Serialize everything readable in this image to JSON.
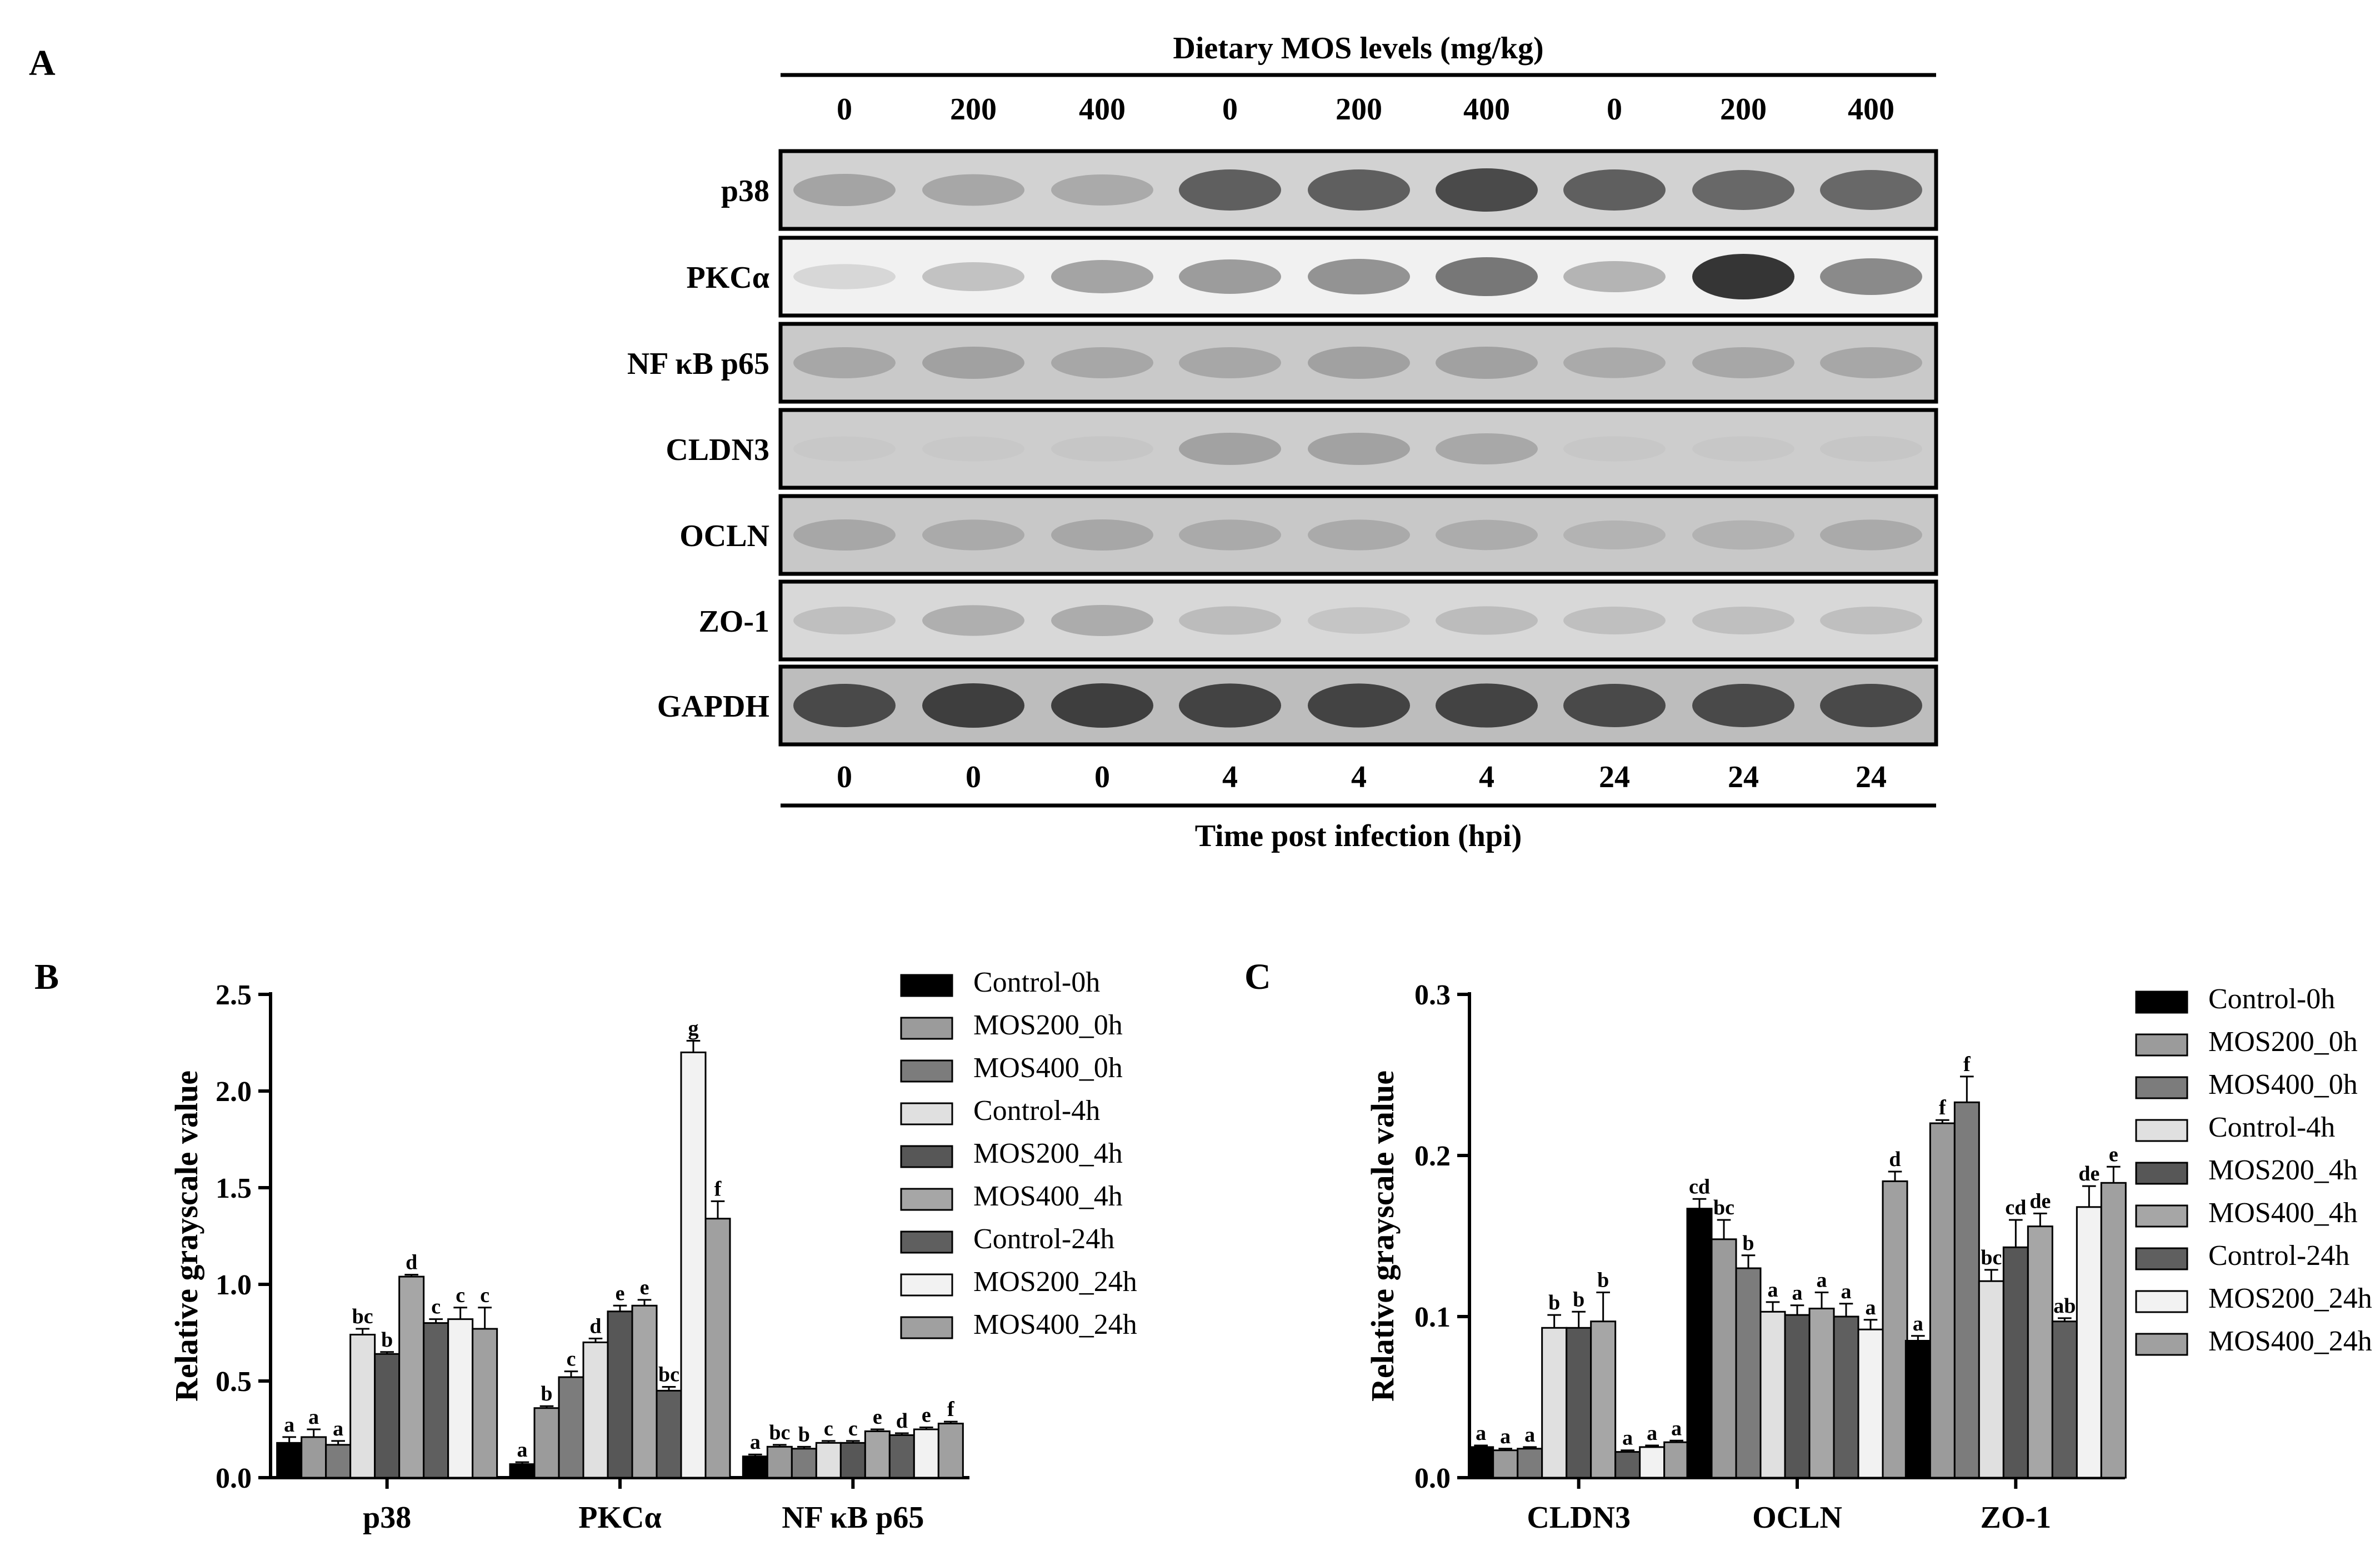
{
  "panel_labels": {
    "a": "A",
    "b": "B",
    "c": "C"
  },
  "blot": {
    "header": "Dietary MOS levels (mg/kg)",
    "footer": "Time post infection (hpi)",
    "mos_levels": [
      "0",
      "200",
      "400",
      "0",
      "200",
      "400",
      "0",
      "200",
      "400"
    ],
    "hpi": [
      "0",
      "0",
      "0",
      "4",
      "4",
      "4",
      "24",
      "24",
      "24"
    ],
    "proteins": [
      {
        "label": "p38",
        "intensity": [
          0.35,
          0.32,
          0.3,
          0.75,
          0.75,
          0.85,
          0.75,
          0.7,
          0.7
        ]
      },
      {
        "label": "PKCα",
        "intensity": [
          0.03,
          0.2,
          0.4,
          0.45,
          0.5,
          0.65,
          0.3,
          0.95,
          0.55
        ]
      },
      {
        "label": "NF κB p65",
        "intensity": [
          0.3,
          0.35,
          0.3,
          0.3,
          0.35,
          0.35,
          0.28,
          0.3,
          0.3
        ]
      },
      {
        "label": "CLDN3",
        "intensity": [
          0.02,
          0.02,
          0.04,
          0.35,
          0.35,
          0.3,
          0.03,
          0.03,
          0.05
        ]
      },
      {
        "label": "OCLN",
        "intensity": [
          0.3,
          0.28,
          0.3,
          0.28,
          0.28,
          0.26,
          0.2,
          0.22,
          0.28
        ]
      },
      {
        "label": "ZO-1",
        "intensity": [
          0.15,
          0.28,
          0.3,
          0.18,
          0.1,
          0.18,
          0.15,
          0.15,
          0.15
        ]
      },
      {
        "label": "GAPDH",
        "intensity": [
          0.85,
          0.9,
          0.9,
          0.88,
          0.88,
          0.88,
          0.85,
          0.85,
          0.85
        ]
      }
    ]
  },
  "legend": [
    "Control-0h",
    "MOS200_0h",
    "MOS400_0h",
    "Control-4h",
    "MOS200_4h",
    "MOS400_4h",
    "Control-24h",
    "MOS200_24h",
    "MOS400_24h"
  ],
  "series_colors": [
    "#000000",
    "#9b9b9b",
    "#7c7c7c",
    "#e0e0e0",
    "#575757",
    "#a6a6a6",
    "#5f5f5f",
    "#f2f2f2",
    "#a0a0a0"
  ],
  "chart_data": [
    {
      "type": "bar",
      "panel": "B",
      "categories": [
        "p38",
        "PKCα",
        "NF κB p65"
      ],
      "ylabel": "Relative grayscale value",
      "ylim": [
        0,
        2.5
      ],
      "yticks": [
        "0.0",
        "0.5",
        "1.0",
        "1.5",
        "2.0",
        "2.5"
      ],
      "legend_position": "right",
      "series": [
        {
          "name": "Control-0h",
          "values": [
            0.18,
            0.07,
            0.11
          ],
          "errors": [
            0.03,
            0.01,
            0.01
          ],
          "letters": [
            "a",
            "a",
            "a"
          ]
        },
        {
          "name": "MOS200_0h",
          "values": [
            0.21,
            0.36,
            0.16
          ],
          "errors": [
            0.04,
            0.01,
            0.01
          ],
          "letters": [
            "a",
            "b",
            "bc"
          ]
        },
        {
          "name": "MOS400_0h",
          "values": [
            0.17,
            0.52,
            0.15
          ],
          "errors": [
            0.02,
            0.03,
            0.01
          ],
          "letters": [
            "a",
            "c",
            "b"
          ]
        },
        {
          "name": "Control-4h",
          "values": [
            0.74,
            0.7,
            0.18
          ],
          "errors": [
            0.03,
            0.02,
            0.01
          ],
          "letters": [
            "bc",
            "d",
            "c"
          ]
        },
        {
          "name": "MOS200_4h",
          "values": [
            0.64,
            0.86,
            0.18
          ],
          "errors": [
            0.01,
            0.03,
            0.01
          ],
          "letters": [
            "b",
            "e",
            "c"
          ]
        },
        {
          "name": "MOS400_4h",
          "values": [
            1.04,
            0.89,
            0.24
          ],
          "errors": [
            0.01,
            0.03,
            0.01
          ],
          "letters": [
            "d",
            "e",
            "e"
          ]
        },
        {
          "name": "Control-24h",
          "values": [
            0.8,
            0.45,
            0.22
          ],
          "errors": [
            0.02,
            0.02,
            0.01
          ],
          "letters": [
            "c",
            "bc",
            "d"
          ]
        },
        {
          "name": "MOS200_24h",
          "values": [
            0.82,
            2.2,
            0.25
          ],
          "errors": [
            0.06,
            0.06,
            0.01
          ],
          "letters": [
            "c",
            "g",
            "e"
          ]
        },
        {
          "name": "MOS400_24h",
          "values": [
            0.77,
            1.34,
            0.28
          ],
          "errors": [
            0.11,
            0.09,
            0.01
          ],
          "letters": [
            "c",
            "f",
            "f"
          ]
        }
      ]
    },
    {
      "type": "bar",
      "panel": "C",
      "categories": [
        "CLDN3",
        "OCLN",
        "ZO-1"
      ],
      "ylabel": "Relative grayscale value",
      "ylim": [
        0,
        0.3
      ],
      "yticks": [
        "0.0",
        "0.1",
        "0.2",
        "0.3"
      ],
      "legend_position": "right",
      "series": [
        {
          "name": "Control-0h",
          "values": [
            0.019,
            0.167,
            0.085
          ],
          "errors": [
            0.001,
            0.006,
            0.003
          ],
          "letters": [
            "a",
            "cd",
            "a"
          ]
        },
        {
          "name": "MOS200_0h",
          "values": [
            0.017,
            0.148,
            0.22
          ],
          "errors": [
            0.001,
            0.012,
            0.002
          ],
          "letters": [
            "a",
            "bc",
            "f"
          ]
        },
        {
          "name": "MOS400_0h",
          "values": [
            0.018,
            0.13,
            0.233
          ],
          "errors": [
            0.001,
            0.008,
            0.016
          ],
          "letters": [
            "a",
            "b",
            "f"
          ]
        },
        {
          "name": "Control-4h",
          "values": [
            0.093,
            0.103,
            0.122
          ],
          "errors": [
            0.008,
            0.006,
            0.007
          ],
          "letters": [
            "b",
            "a",
            "bc"
          ]
        },
        {
          "name": "MOS200_4h",
          "values": [
            0.093,
            0.101,
            0.143
          ],
          "errors": [
            0.01,
            0.006,
            0.017
          ],
          "letters": [
            "b",
            "a",
            "cd"
          ]
        },
        {
          "name": "MOS400_4h",
          "values": [
            0.097,
            0.105,
            0.156
          ],
          "errors": [
            0.018,
            0.01,
            0.008
          ],
          "letters": [
            "b",
            "a",
            "de"
          ]
        },
        {
          "name": "Control-24h",
          "values": [
            0.016,
            0.1,
            0.097
          ],
          "errors": [
            0.001,
            0.008,
            0.002
          ],
          "letters": [
            "a",
            "a",
            "ab"
          ]
        },
        {
          "name": "MOS200_24h",
          "values": [
            0.019,
            0.092,
            0.168
          ],
          "errors": [
            0.001,
            0.006,
            0.013
          ],
          "letters": [
            "a",
            "a",
            "de"
          ]
        },
        {
          "name": "MOS400_24h",
          "values": [
            0.022,
            0.184,
            0.183
          ],
          "errors": [
            0.001,
            0.006,
            0.01
          ],
          "letters": [
            "a",
            "d",
            "e"
          ]
        }
      ]
    }
  ]
}
